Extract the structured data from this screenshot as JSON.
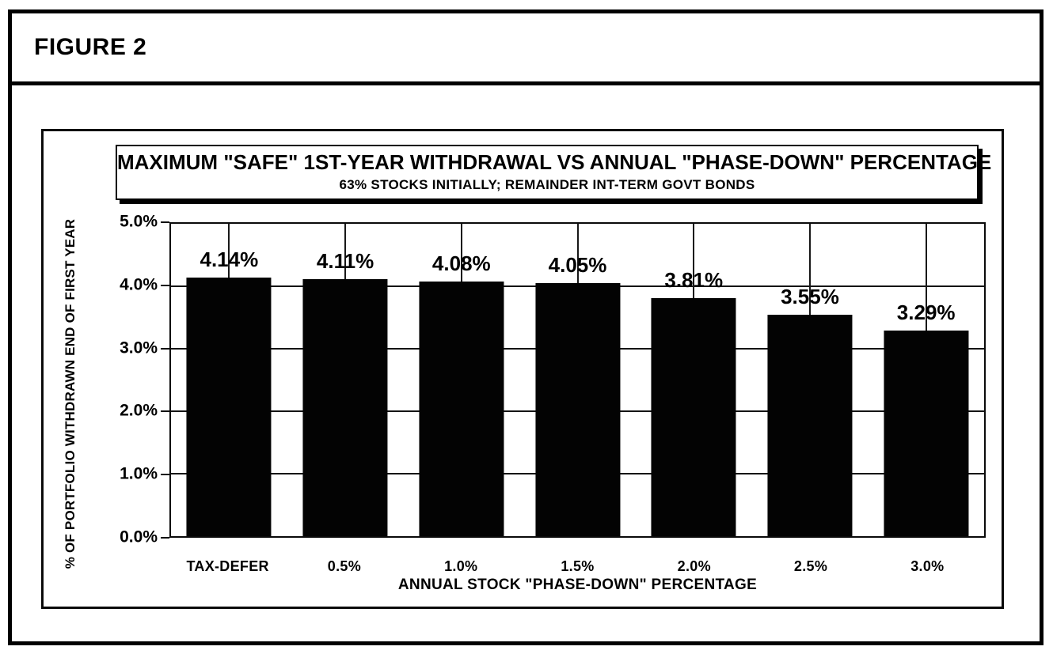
{
  "figure": {
    "label": "FIGURE 2"
  },
  "chart_data": {
    "type": "bar",
    "title": "MAXIMUM \"SAFE\" 1ST-YEAR WITHDRAWAL VS ANNUAL \"PHASE-DOWN\" PERCENTAGE",
    "subtitle": "63% STOCKS INITIALLY; REMAINDER INT-TERM GOVT BONDS",
    "categories": [
      "TAX-DEFER",
      "0.5%",
      "1.0%",
      "1.5%",
      "2.0%",
      "2.5%",
      "3.0%"
    ],
    "values": [
      4.14,
      4.11,
      4.08,
      4.05,
      3.81,
      3.55,
      3.29
    ],
    "data_labels": [
      "4.14%",
      "4.11%",
      "4.08%",
      "4.05%",
      "3.81%",
      "3.55%",
      "3.29%"
    ],
    "xlabel": "ANNUAL STOCK \"PHASE-DOWN\" PERCENTAGE",
    "ylabel": "% OF PORTFOLIO WITHDRAWN END OF FIRST YEAR",
    "ylim": [
      0,
      5
    ],
    "ytick_step": 1.0,
    "yticks": [
      "5.0%",
      "4.0%",
      "3.0%",
      "2.0%",
      "1.0%",
      "0.0%"
    ],
    "grid": "horizontal gridlines at each 1.0% plus vertical gridline at each category center",
    "legend": "none",
    "bar_color": "#000000",
    "text_color": "#000000",
    "background": "#ffffff"
  }
}
